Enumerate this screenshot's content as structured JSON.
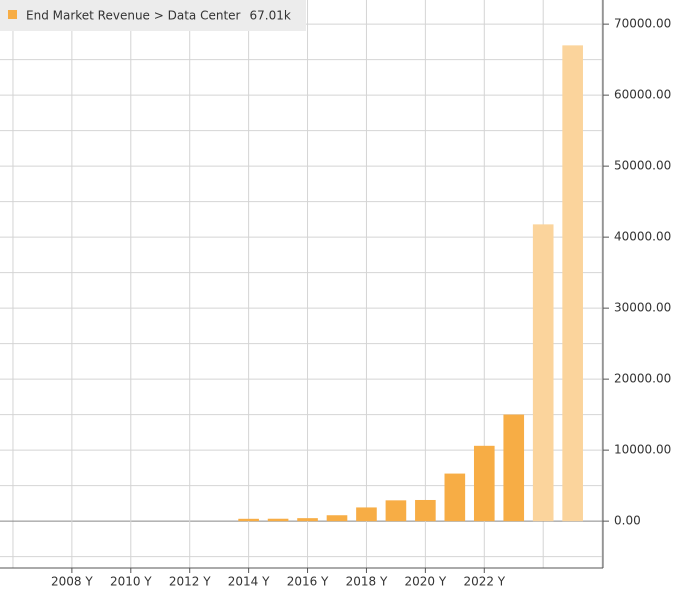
{
  "chart_data": {
    "type": "bar",
    "x": [
      2014,
      2015,
      2016,
      2017,
      2018,
      2019,
      2020,
      2021,
      2022,
      2023,
      2024,
      2025
    ],
    "series": [
      {
        "name": "End Market Revenue > Data Center",
        "last_value_label": "67.01k",
        "color": "#f7ad45",
        "colors": [
          "#f7ad45",
          "#f7ad45",
          "#f7ad45",
          "#f7ad45",
          "#f7ad45",
          "#f7ad45",
          "#f7ad45",
          "#f7ad45",
          "#f7ad45",
          "#f7ad45",
          "#fbd49c",
          "#fbd49c"
        ],
        "values": [
          330,
          340,
          420,
          830,
          1930,
          2930,
          2980,
          6700,
          10610,
          15010,
          41800,
          67010
        ]
      }
    ],
    "xlim": [
      2005.56,
      2026.03
    ],
    "xticks": [
      {
        "value": 2008,
        "label": "2008 Y"
      },
      {
        "value": 2010,
        "label": "2010 Y"
      },
      {
        "value": 2012,
        "label": "2012 Y"
      },
      {
        "value": 2014,
        "label": "2014 Y"
      },
      {
        "value": 2016,
        "label": "2016 Y"
      },
      {
        "value": 2018,
        "label": "2018 Y"
      },
      {
        "value": 2020,
        "label": "2020 Y"
      },
      {
        "value": 2022,
        "label": "2022 Y"
      }
    ],
    "xticks_minor": [
      2006,
      2024,
      2026
    ],
    "ylim": [
      -6600,
      73400
    ],
    "yticks": [
      {
        "value": 0,
        "label": "0.00"
      },
      {
        "value": 10000,
        "label": "10000.00"
      },
      {
        "value": 20000,
        "label": "20000.00"
      },
      {
        "value": 30000,
        "label": "30000.00"
      },
      {
        "value": 40000,
        "label": "40000.00"
      },
      {
        "value": 50000,
        "label": "50000.00"
      },
      {
        "value": 60000,
        "label": "60000.00"
      },
      {
        "value": 70000,
        "label": "70000.00"
      }
    ],
    "yticks_minor": [
      -5000,
      5000,
      15000,
      25000,
      35000,
      45000,
      55000,
      65000
    ],
    "grid": true,
    "legend": "top-left"
  }
}
